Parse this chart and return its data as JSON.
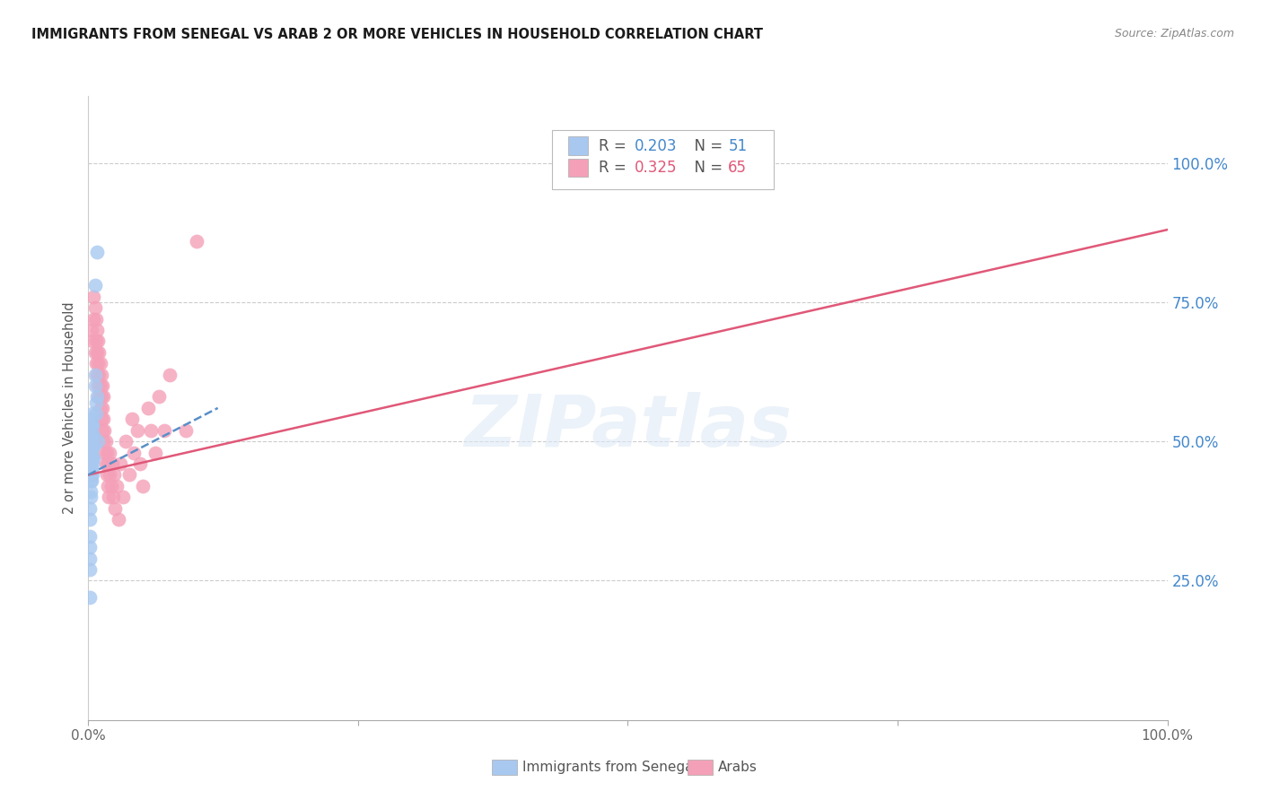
{
  "title": "IMMIGRANTS FROM SENEGAL VS ARAB 2 OR MORE VEHICLES IN HOUSEHOLD CORRELATION CHART",
  "source": "Source: ZipAtlas.com",
  "ylabel": "2 or more Vehicles in Household",
  "legend_label1": "Immigrants from Senegal",
  "legend_label2": "Arabs",
  "R1": 0.203,
  "N1": 51,
  "R2": 0.325,
  "N2": 65,
  "color_blue": "#a8c8f0",
  "color_pink": "#f4a0b8",
  "color_blue_line": "#5a8fc8",
  "color_pink_line": "#e05878",
  "right_axis_color": "#4488cc",
  "senegal_x": [
    0.001,
    0.001,
    0.001,
    0.001,
    0.001,
    0.001,
    0.001,
    0.002,
    0.002,
    0.002,
    0.002,
    0.002,
    0.002,
    0.002,
    0.002,
    0.002,
    0.002,
    0.002,
    0.002,
    0.002,
    0.002,
    0.002,
    0.002,
    0.003,
    0.003,
    0.003,
    0.003,
    0.003,
    0.003,
    0.003,
    0.003,
    0.003,
    0.003,
    0.004,
    0.004,
    0.004,
    0.004,
    0.004,
    0.004,
    0.004,
    0.005,
    0.005,
    0.005,
    0.006,
    0.006,
    0.006,
    0.007,
    0.007,
    0.008,
    0.008,
    0.009
  ],
  "senegal_y": [
    0.22,
    0.27,
    0.29,
    0.31,
    0.33,
    0.36,
    0.38,
    0.4,
    0.41,
    0.43,
    0.44,
    0.45,
    0.46,
    0.47,
    0.47,
    0.48,
    0.48,
    0.49,
    0.49,
    0.5,
    0.5,
    0.51,
    0.52,
    0.43,
    0.45,
    0.47,
    0.48,
    0.49,
    0.5,
    0.51,
    0.52,
    0.53,
    0.54,
    0.44,
    0.46,
    0.47,
    0.49,
    0.51,
    0.53,
    0.55,
    0.47,
    0.49,
    0.51,
    0.6,
    0.62,
    0.78,
    0.55,
    0.57,
    0.58,
    0.84,
    0.5
  ],
  "arab_x": [
    0.003,
    0.004,
    0.005,
    0.005,
    0.006,
    0.006,
    0.007,
    0.007,
    0.007,
    0.008,
    0.008,
    0.008,
    0.009,
    0.009,
    0.009,
    0.01,
    0.01,
    0.01,
    0.011,
    0.011,
    0.011,
    0.012,
    0.012,
    0.012,
    0.013,
    0.013,
    0.013,
    0.014,
    0.014,
    0.014,
    0.015,
    0.015,
    0.016,
    0.016,
    0.017,
    0.017,
    0.018,
    0.018,
    0.019,
    0.02,
    0.02,
    0.021,
    0.022,
    0.023,
    0.024,
    0.025,
    0.026,
    0.028,
    0.03,
    0.032,
    0.035,
    0.038,
    0.04,
    0.042,
    0.045,
    0.048,
    0.05,
    0.055,
    0.058,
    0.062,
    0.065,
    0.07,
    0.075,
    0.09,
    0.1
  ],
  "arab_y": [
    0.7,
    0.68,
    0.72,
    0.76,
    0.66,
    0.74,
    0.64,
    0.68,
    0.72,
    0.62,
    0.66,
    0.7,
    0.6,
    0.64,
    0.68,
    0.58,
    0.62,
    0.66,
    0.56,
    0.6,
    0.64,
    0.54,
    0.58,
    0.62,
    0.52,
    0.56,
    0.6,
    0.5,
    0.54,
    0.58,
    0.48,
    0.52,
    0.46,
    0.5,
    0.44,
    0.48,
    0.42,
    0.46,
    0.4,
    0.44,
    0.48,
    0.42,
    0.46,
    0.4,
    0.44,
    0.38,
    0.42,
    0.36,
    0.46,
    0.4,
    0.5,
    0.44,
    0.54,
    0.48,
    0.52,
    0.46,
    0.42,
    0.56,
    0.52,
    0.48,
    0.58,
    0.52,
    0.62,
    0.52,
    0.86
  ],
  "arab_line_x0": 0.0,
  "arab_line_x1": 1.0,
  "arab_line_y0": 0.44,
  "arab_line_y1": 0.88,
  "senegal_line_x0": 0.0,
  "senegal_line_x1": 0.12,
  "senegal_line_y0": 0.44,
  "senegal_line_y1": 0.56,
  "xlim": [
    0.0,
    1.0
  ],
  "ylim": [
    0.0,
    1.12
  ]
}
